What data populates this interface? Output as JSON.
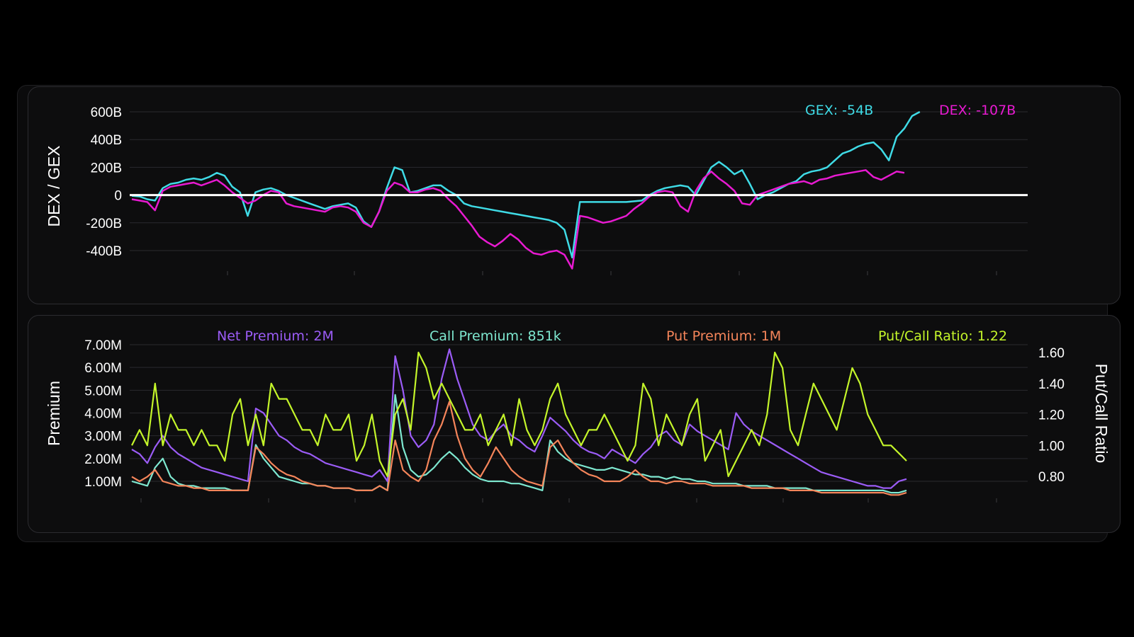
{
  "chart_data": [
    {
      "type": "line",
      "ylabel": "DEX / GEX",
      "ylim": [
        -500,
        650
      ],
      "yticks": [
        600,
        400,
        200,
        0,
        -200,
        -400
      ],
      "ytick_labels": [
        "600B",
        "400B",
        "200B",
        "0",
        "-200B",
        "-400B"
      ],
      "grid": true,
      "legend_position": "top-right",
      "x_count": 121,
      "series": [
        {
          "name": "GEX: -54B",
          "color": "#3fdbe6",
          "values": [
            -5,
            -10,
            -30,
            -40,
            50,
            80,
            90,
            110,
            120,
            110,
            130,
            160,
            140,
            60,
            20,
            -150,
            20,
            40,
            50,
            30,
            0,
            -20,
            -40,
            -60,
            -80,
            -100,
            -80,
            -70,
            -60,
            -90,
            -190,
            -230,
            -120,
            50,
            200,
            180,
            20,
            30,
            50,
            70,
            70,
            30,
            0,
            -60,
            -80,
            -90,
            -100,
            -110,
            -120,
            -130,
            -140,
            -150,
            -160,
            -170,
            -180,
            -200,
            -250,
            -450,
            -50,
            -50,
            -50,
            -50,
            -50,
            -50,
            -50,
            -45,
            -40,
            0,
            30,
            50,
            60,
            70,
            60,
            0,
            100,
            200,
            240,
            200,
            150,
            180,
            80,
            -30,
            0,
            20,
            50,
            80,
            100,
            150,
            170,
            180,
            200,
            250,
            300,
            320,
            350,
            370,
            380,
            330,
            250,
            420,
            480,
            570,
            600,
            null,
            null,
            null,
            null,
            null,
            null,
            null,
            null,
            null,
            null,
            null,
            null,
            null,
            null,
            null,
            null,
            null,
            null,
            null
          ],
          "note_values_end": "data ends near last third"
        },
        {
          "name": "DEX: -107B",
          "color": "#e81ad1",
          "values": [
            -30,
            -40,
            -50,
            -110,
            30,
            60,
            70,
            80,
            90,
            70,
            90,
            110,
            70,
            20,
            -20,
            -60,
            -40,
            0,
            30,
            20,
            -60,
            -80,
            -90,
            -100,
            -110,
            -120,
            -90,
            -80,
            -90,
            -120,
            -200,
            -230,
            -120,
            30,
            90,
            70,
            20,
            20,
            40,
            50,
            30,
            -30,
            -80,
            -150,
            -220,
            -300,
            -340,
            -370,
            -330,
            -280,
            -320,
            -380,
            -420,
            -430,
            -410,
            -400,
            -430,
            -530,
            -150,
            -160,
            -180,
            -200,
            -190,
            -170,
            -150,
            -100,
            -60,
            -10,
            20,
            30,
            20,
            -80,
            -120,
            30,
            120,
            170,
            120,
            80,
            30,
            -60,
            -70,
            0,
            20,
            40,
            60,
            80,
            90,
            100,
            80,
            110,
            120,
            140,
            150,
            160,
            170,
            180,
            130,
            110,
            140,
            170,
            160,
            null,
            null,
            null,
            null,
            null,
            null,
            null,
            null,
            null,
            null,
            null,
            null,
            null,
            null,
            null,
            null,
            null,
            null,
            null,
            null
          ]
        },
        {
          "name": "zero-line",
          "color": "#ffffff",
          "values": [
            0
          ]
        }
      ]
    },
    {
      "type": "line",
      "ylabel": "Premium",
      "y2label": "Put/Call Ratio",
      "ylim": [
        0.3,
        7.3
      ],
      "yticks": [
        7,
        6,
        5,
        4,
        3,
        2,
        1
      ],
      "ytick_labels": [
        "7.00M",
        "6.00M",
        "5.00M",
        "4.00M",
        "3.00M",
        "2.00M",
        "1.00M"
      ],
      "y2lim": [
        0.7,
        1.72
      ],
      "y2ticks": [
        1.6,
        1.4,
        1.2,
        1.0,
        0.8
      ],
      "y2tick_labels": [
        "1.60",
        "1.40",
        "1.20",
        "1.00",
        "0.80"
      ],
      "grid": true,
      "legend_position": "top",
      "x_count": 121,
      "series": [
        {
          "name": "Net Premium: 2M",
          "color": "#9b5cf6",
          "axis": "left",
          "values": [
            2.4,
            2.2,
            1.8,
            2.5,
            3.0,
            2.5,
            2.2,
            2.0,
            1.8,
            1.6,
            1.5,
            1.4,
            1.3,
            1.2,
            1.1,
            1.0,
            4.2,
            4.0,
            3.5,
            3.0,
            2.8,
            2.5,
            2.3,
            2.2,
            2.0,
            1.8,
            1.7,
            1.6,
            1.5,
            1.4,
            1.3,
            1.2,
            1.5,
            1.0,
            6.5,
            5.0,
            3.0,
            2.5,
            2.8,
            3.5,
            5.5,
            6.8,
            5.5,
            4.5,
            3.5,
            3.0,
            2.8,
            3.2,
            3.5,
            3.0,
            2.8,
            2.5,
            2.3,
            3.0,
            3.8,
            3.5,
            3.2,
            2.8,
            2.5,
            2.3,
            2.2,
            2.0,
            2.4,
            2.2,
            2.0,
            1.8,
            2.2,
            2.5,
            3.0,
            3.2,
            2.8,
            2.6,
            3.5,
            3.2,
            3.0,
            2.8,
            2.6,
            2.4,
            4.0,
            3.5,
            3.2,
            3.0,
            2.8,
            2.6,
            2.4,
            2.2,
            2.0,
            1.8,
            1.6,
            1.4,
            1.3,
            1.2,
            1.1,
            1.0,
            0.9,
            0.8,
            0.8,
            0.7,
            0.7,
            1.0,
            1.1,
            null,
            null,
            null,
            null,
            null,
            null,
            null,
            null,
            null,
            null,
            null,
            null,
            null,
            null,
            null,
            null,
            null,
            null,
            null
          ],
          "note": "line ends near 1253px"
        },
        {
          "name": "Call Premium: 851k",
          "color": "#7ee8d0",
          "axis": "left",
          "values": [
            1.0,
            0.9,
            0.8,
            1.6,
            2.0,
            1.2,
            0.9,
            0.8,
            0.8,
            0.7,
            0.7,
            0.7,
            0.7,
            0.6,
            0.6,
            0.6,
            2.6,
            2.0,
            1.6,
            1.2,
            1.1,
            1.0,
            0.9,
            0.9,
            0.8,
            0.8,
            0.7,
            0.7,
            0.7,
            0.6,
            0.6,
            0.6,
            0.8,
            0.6,
            4.8,
            2.5,
            1.5,
            1.2,
            1.3,
            1.6,
            2.0,
            2.3,
            2.0,
            1.6,
            1.3,
            1.1,
            1.0,
            1.0,
            1.0,
            0.9,
            0.9,
            0.8,
            0.7,
            0.6,
            2.8,
            2.3,
            2.0,
            1.8,
            1.7,
            1.6,
            1.5,
            1.5,
            1.6,
            1.5,
            1.4,
            1.3,
            1.3,
            1.2,
            1.2,
            1.1,
            1.2,
            1.1,
            1.1,
            1.0,
            1.0,
            0.9,
            0.9,
            0.9,
            0.9,
            0.8,
            0.8,
            0.8,
            0.8,
            0.7,
            0.7,
            0.7,
            0.7,
            0.7,
            0.6,
            0.6,
            0.6,
            0.6,
            0.6,
            0.6,
            0.6,
            0.6,
            0.6,
            0.6,
            0.5,
            0.5,
            0.6,
            null,
            null,
            null,
            null,
            null,
            null,
            null,
            null,
            null,
            null,
            null,
            null,
            null,
            null,
            null,
            null,
            null,
            null,
            null
          ]
        },
        {
          "name": "Put Premium: 1M",
          "color": "#f5855a",
          "axis": "left",
          "values": [
            1.2,
            1.0,
            1.2,
            1.5,
            1.0,
            0.9,
            0.8,
            0.8,
            0.7,
            0.7,
            0.6,
            0.6,
            0.6,
            0.6,
            0.6,
            0.6,
            2.5,
            2.2,
            1.8,
            1.5,
            1.3,
            1.2,
            1.0,
            0.9,
            0.8,
            0.8,
            0.7,
            0.7,
            0.7,
            0.6,
            0.6,
            0.6,
            0.8,
            0.6,
            2.8,
            1.5,
            1.2,
            1.0,
            1.5,
            2.8,
            3.5,
            4.5,
            3.0,
            2.0,
            1.5,
            1.2,
            1.8,
            2.5,
            2.0,
            1.5,
            1.2,
            1.0,
            0.9,
            0.8,
            2.5,
            2.8,
            2.2,
            1.8,
            1.5,
            1.3,
            1.2,
            1.0,
            1.0,
            1.0,
            1.2,
            1.5,
            1.2,
            1.0,
            1.0,
            0.9,
            1.0,
            1.0,
            0.9,
            0.9,
            0.9,
            0.8,
            0.8,
            0.8,
            0.8,
            0.8,
            0.7,
            0.7,
            0.7,
            0.7,
            0.7,
            0.6,
            0.6,
            0.6,
            0.6,
            0.5,
            0.5,
            0.5,
            0.5,
            0.5,
            0.5,
            0.5,
            0.5,
            0.5,
            0.4,
            0.4,
            0.5,
            null,
            null,
            null,
            null,
            null,
            null,
            null,
            null,
            null,
            null,
            null,
            null,
            null,
            null,
            null,
            null,
            null,
            null,
            null
          ]
        },
        {
          "name": "Put/Call Ratio: 1.22",
          "color": "#c4f52a",
          "axis": "right",
          "values": [
            1.0,
            1.1,
            1.0,
            1.4,
            1.0,
            1.2,
            1.1,
            1.1,
            1.0,
            1.1,
            1.0,
            1.0,
            0.9,
            1.2,
            1.3,
            1.0,
            1.2,
            1.0,
            1.4,
            1.3,
            1.3,
            1.2,
            1.1,
            1.1,
            1.0,
            1.2,
            1.1,
            1.1,
            1.2,
            0.9,
            1.0,
            1.2,
            0.9,
            0.8,
            1.2,
            1.3,
            1.1,
            1.6,
            1.5,
            1.3,
            1.4,
            1.3,
            1.2,
            1.1,
            1.1,
            1.2,
            1.0,
            1.1,
            1.2,
            1.0,
            1.3,
            1.1,
            1.0,
            1.1,
            1.3,
            1.4,
            1.2,
            1.1,
            1.0,
            1.1,
            1.1,
            1.2,
            1.1,
            1.0,
            0.9,
            1.0,
            1.4,
            1.3,
            1.0,
            1.2,
            1.1,
            1.0,
            1.2,
            1.3,
            0.9,
            1.0,
            1.1,
            0.8,
            0.9,
            1.0,
            1.1,
            1.0,
            1.2,
            1.6,
            1.5,
            1.1,
            1.0,
            1.2,
            1.4,
            1.3,
            1.2,
            1.1,
            1.3,
            1.5,
            1.4,
            1.2,
            1.1,
            1.0,
            1.0,
            0.95,
            0.9,
            null,
            null,
            null,
            null,
            null,
            null,
            null,
            null,
            null,
            null,
            null,
            null,
            null,
            null,
            null,
            null,
            null,
            null,
            null
          ]
        }
      ]
    }
  ]
}
